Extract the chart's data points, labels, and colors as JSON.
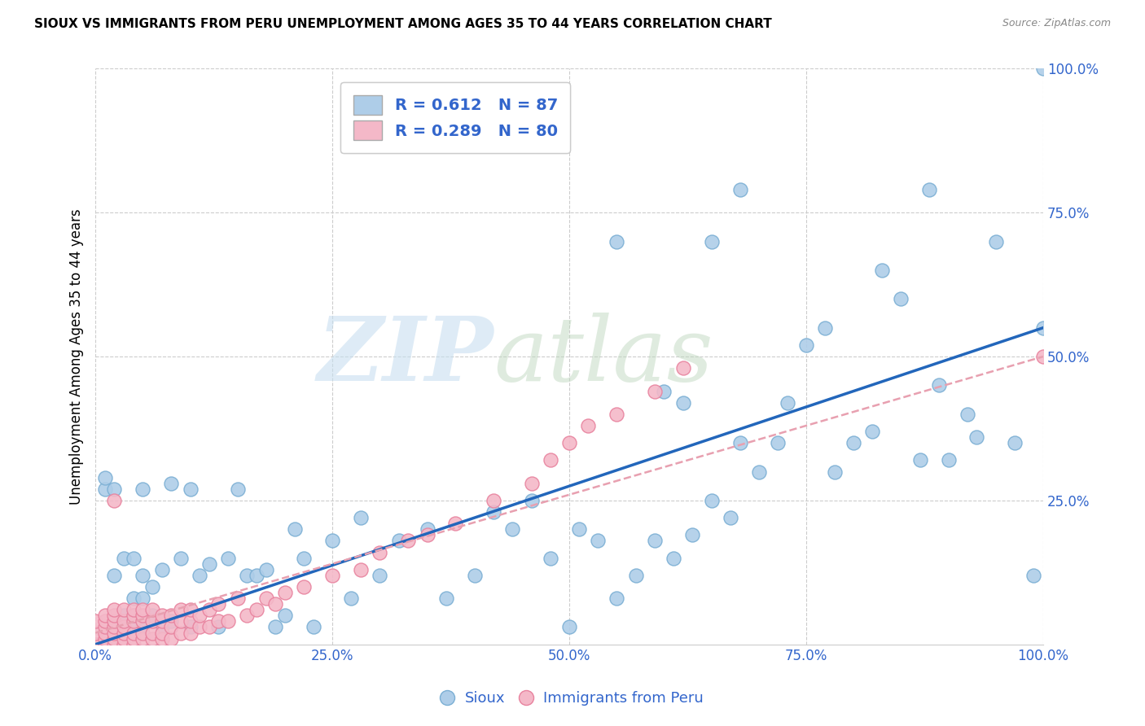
{
  "title": "SIOUX VS IMMIGRANTS FROM PERU UNEMPLOYMENT AMONG AGES 35 TO 44 YEARS CORRELATION CHART",
  "source": "Source: ZipAtlas.com",
  "ylabel": "Unemployment Among Ages 35 to 44 years",
  "xlim": [
    0,
    1.0
  ],
  "ylim": [
    0,
    1.0
  ],
  "xtick_labels": [
    "0.0%",
    "25.0%",
    "50.0%",
    "75.0%",
    "100.0%"
  ],
  "xtick_positions": [
    0,
    0.25,
    0.5,
    0.75,
    1.0
  ],
  "ytick_labels": [
    "25.0%",
    "50.0%",
    "75.0%",
    "100.0%"
  ],
  "ytick_positions": [
    0.25,
    0.5,
    0.75,
    1.0
  ],
  "sioux_color": "#aecde8",
  "sioux_edge_color": "#7bafd4",
  "peru_color": "#f4b8c8",
  "peru_edge_color": "#e8829e",
  "line_sioux_color": "#2266bb",
  "line_peru_color": "#e8a0b0",
  "legend_R_sioux": "0.612",
  "legend_N_sioux": "87",
  "legend_R_peru": "0.289",
  "legend_N_peru": "80",
  "sioux_line_slope": 0.55,
  "sioux_line_intercept": 0.0,
  "peru_line_slope": 0.48,
  "peru_line_intercept": 0.02,
  "sioux_x": [
    0.01,
    0.01,
    0.02,
    0.02,
    0.02,
    0.03,
    0.03,
    0.03,
    0.04,
    0.04,
    0.04,
    0.04,
    0.05,
    0.05,
    0.05,
    0.05,
    0.06,
    0.06,
    0.07,
    0.07,
    0.08,
    0.08,
    0.09,
    0.1,
    0.1,
    0.11,
    0.12,
    0.13,
    0.14,
    0.15,
    0.16,
    0.17,
    0.18,
    0.19,
    0.2,
    0.21,
    0.22,
    0.23,
    0.25,
    0.27,
    0.28,
    0.3,
    0.32,
    0.35,
    0.37,
    0.4,
    0.42,
    0.44,
    0.46,
    0.48,
    0.5,
    0.51,
    0.53,
    0.55,
    0.57,
    0.59,
    0.61,
    0.63,
    0.65,
    0.67,
    0.68,
    0.7,
    0.72,
    0.73,
    0.75,
    0.77,
    0.78,
    0.8,
    0.82,
    0.83,
    0.85,
    0.87,
    0.88,
    0.89,
    0.9,
    0.92,
    0.93,
    0.95,
    0.97,
    0.99,
    1.0,
    1.0,
    0.55,
    0.6,
    0.62,
    0.65,
    0.68
  ],
  "sioux_y": [
    0.27,
    0.29,
    0.03,
    0.12,
    0.27,
    0.03,
    0.05,
    0.15,
    0.03,
    0.05,
    0.08,
    0.15,
    0.03,
    0.08,
    0.12,
    0.27,
    0.05,
    0.1,
    0.03,
    0.13,
    0.04,
    0.28,
    0.15,
    0.03,
    0.27,
    0.12,
    0.14,
    0.03,
    0.15,
    0.27,
    0.12,
    0.12,
    0.13,
    0.03,
    0.05,
    0.2,
    0.15,
    0.03,
    0.18,
    0.08,
    0.22,
    0.12,
    0.18,
    0.2,
    0.08,
    0.12,
    0.23,
    0.2,
    0.25,
    0.15,
    0.03,
    0.2,
    0.18,
    0.08,
    0.12,
    0.18,
    0.15,
    0.19,
    0.25,
    0.22,
    0.35,
    0.3,
    0.35,
    0.42,
    0.52,
    0.55,
    0.3,
    0.35,
    0.37,
    0.65,
    0.6,
    0.32,
    0.79,
    0.45,
    0.32,
    0.4,
    0.36,
    0.7,
    0.35,
    0.12,
    0.55,
    1.0,
    0.7,
    0.44,
    0.42,
    0.7,
    0.79
  ],
  "peru_x": [
    0.0,
    0.0,
    0.0,
    0.01,
    0.01,
    0.01,
    0.01,
    0.01,
    0.01,
    0.02,
    0.02,
    0.02,
    0.02,
    0.02,
    0.02,
    0.02,
    0.02,
    0.03,
    0.03,
    0.03,
    0.03,
    0.03,
    0.03,
    0.04,
    0.04,
    0.04,
    0.04,
    0.04,
    0.04,
    0.05,
    0.05,
    0.05,
    0.05,
    0.05,
    0.06,
    0.06,
    0.06,
    0.06,
    0.07,
    0.07,
    0.07,
    0.07,
    0.08,
    0.08,
    0.08,
    0.09,
    0.09,
    0.09,
    0.1,
    0.1,
    0.1,
    0.11,
    0.11,
    0.12,
    0.12,
    0.13,
    0.13,
    0.14,
    0.15,
    0.16,
    0.17,
    0.18,
    0.19,
    0.2,
    0.22,
    0.25,
    0.28,
    0.3,
    0.33,
    0.35,
    0.38,
    0.42,
    0.46,
    0.48,
    0.5,
    0.52,
    0.55,
    0.59,
    0.62,
    1.0
  ],
  "peru_y": [
    0.0,
    0.02,
    0.04,
    0.0,
    0.01,
    0.02,
    0.03,
    0.04,
    0.05,
    0.0,
    0.01,
    0.02,
    0.03,
    0.04,
    0.05,
    0.06,
    0.25,
    0.0,
    0.01,
    0.02,
    0.03,
    0.04,
    0.06,
    0.0,
    0.01,
    0.02,
    0.04,
    0.05,
    0.06,
    0.01,
    0.02,
    0.04,
    0.05,
    0.06,
    0.01,
    0.02,
    0.04,
    0.06,
    0.01,
    0.02,
    0.04,
    0.05,
    0.01,
    0.03,
    0.05,
    0.02,
    0.04,
    0.06,
    0.02,
    0.04,
    0.06,
    0.03,
    0.05,
    0.03,
    0.06,
    0.04,
    0.07,
    0.04,
    0.08,
    0.05,
    0.06,
    0.08,
    0.07,
    0.09,
    0.1,
    0.12,
    0.13,
    0.16,
    0.18,
    0.19,
    0.21,
    0.25,
    0.28,
    0.32,
    0.35,
    0.38,
    0.4,
    0.44,
    0.48,
    0.5
  ]
}
